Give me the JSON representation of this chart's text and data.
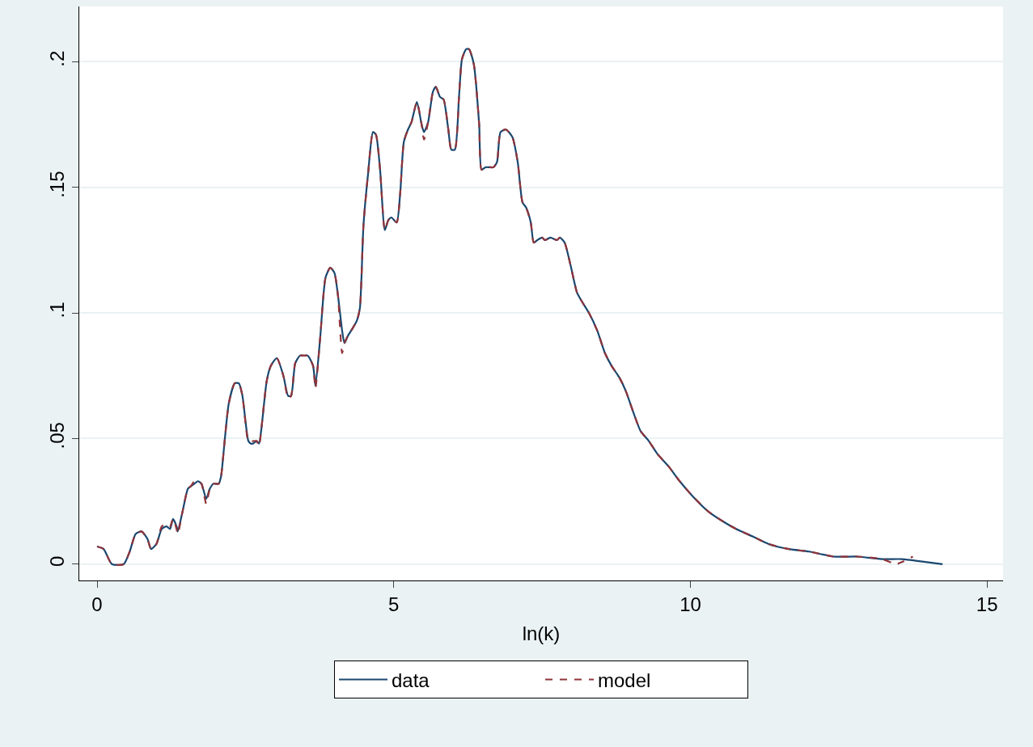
{
  "chart_data": {
    "type": "line",
    "xlabel": "ln(k)",
    "xlim": [
      -0.3,
      15.27
    ],
    "xticks": [
      0,
      5,
      10,
      15
    ],
    "ylim": [
      -0.0065,
      0.222
    ],
    "yticks": [
      {
        "value": 0,
        "label": "0"
      },
      {
        "value": 0.05,
        "label": ".05"
      },
      {
        "value": 0.1,
        "label": ".1"
      },
      {
        "value": 0.15,
        "label": ".15"
      },
      {
        "value": 0.2,
        "label": ".2"
      }
    ],
    "grid": "y",
    "legend": "bottom",
    "marker": "none",
    "series": [
      {
        "name": "data",
        "color": "#1a476f",
        "line_style": "solid",
        "x": [
          0,
          0.11,
          0.25,
          0.45,
          0.55,
          0.65,
          0.75,
          0.85,
          0.91,
          1.0,
          1.09,
          1.17,
          1.23,
          1.28,
          1.34,
          1.36,
          1.45,
          1.53,
          1.58,
          1.64,
          1.7,
          1.76,
          1.84,
          1.9,
          1.96,
          2.05,
          2.09,
          2.15,
          2.22,
          2.32,
          2.39,
          2.45,
          2.55,
          2.59,
          2.63,
          2.69,
          2.73,
          2.77,
          2.86,
          2.93,
          3.03,
          3.14,
          3.22,
          3.27,
          3.34,
          3.42,
          3.49,
          3.55,
          3.64,
          3.68,
          3.76,
          3.85,
          3.93,
          4.0,
          4.06,
          4.13,
          4.17,
          4.23,
          4.31,
          4.38,
          4.43,
          4.49,
          4.57,
          4.65,
          4.7,
          4.77,
          4.85,
          4.91,
          4.96,
          5.05,
          5.11,
          5.17,
          5.24,
          5.3,
          5.39,
          5.47,
          5.51,
          5.58,
          5.66,
          5.71,
          5.78,
          5.84,
          5.92,
          5.97,
          6.03,
          6.1,
          6.15,
          6.22,
          6.27,
          6.35,
          6.44,
          6.48,
          6.55,
          6.61,
          6.68,
          6.74,
          6.8,
          6.89,
          7.0,
          7.09,
          7.17,
          7.23,
          7.31,
          7.36,
          7.42,
          7.5,
          7.55,
          7.64,
          7.75,
          7.8,
          7.88,
          7.98,
          8.09,
          8.16,
          8.29,
          8.43,
          8.56,
          8.67,
          8.81,
          8.91,
          9.03,
          9.16,
          9.3,
          9.44,
          9.63,
          9.82,
          10.04,
          10.3,
          10.55,
          10.77,
          11.05,
          11.32,
          11.66,
          12.0,
          12.41,
          12.82,
          13.23,
          13.57,
          13.91,
          14.25
        ],
        "values": [
          0.007,
          0.006,
          0,
          0,
          0.005,
          0.012,
          0.013,
          0.01,
          0.006,
          0.008,
          0.014,
          0.015,
          0.014,
          0.018,
          0.015,
          0.013,
          0.022,
          0.03,
          0.031,
          0.032,
          0.033,
          0.032,
          0.026,
          0.03,
          0.032,
          0.032,
          0.035,
          0.049,
          0.064,
          0.072,
          0.072,
          0.067,
          0.049,
          0.048,
          0.048,
          0.049,
          0.048,
          0.054,
          0.073,
          0.079,
          0.082,
          0.075,
          0.067,
          0.067,
          0.08,
          0.083,
          0.083,
          0.083,
          0.079,
          0.071,
          0.09,
          0.114,
          0.118,
          0.116,
          0.107,
          0.093,
          0.088,
          0.091,
          0.094,
          0.097,
          0.102,
          0.135,
          0.156,
          0.172,
          0.171,
          0.157,
          0.133,
          0.137,
          0.138,
          0.136,
          0.148,
          0.168,
          0.173,
          0.176,
          0.184,
          0.175,
          0.172,
          0.176,
          0.188,
          0.19,
          0.186,
          0.185,
          0.173,
          0.165,
          0.165,
          0.186,
          0.201,
          0.205,
          0.205,
          0.199,
          0.175,
          0.157,
          0.158,
          0.158,
          0.158,
          0.16,
          0.172,
          0.173,
          0.17,
          0.16,
          0.144,
          0.142,
          0.136,
          0.128,
          0.129,
          0.13,
          0.129,
          0.13,
          0.129,
          0.13,
          0.128,
          0.119,
          0.108,
          0.105,
          0.1,
          0.093,
          0.084,
          0.079,
          0.074,
          0.069,
          0.061,
          0.053,
          0.049,
          0.044,
          0.039,
          0.033,
          0.027,
          0.021,
          0.017,
          0.014,
          0.011,
          0.008,
          0.006,
          0.005,
          0.003,
          0.003,
          0.002,
          0.002,
          0.001,
          0.0
        ]
      },
      {
        "name": "model",
        "color": "#90353b",
        "line_style": "dashed",
        "x": [
          0,
          0.11,
          0.25,
          0.45,
          0.55,
          0.65,
          0.75,
          0.85,
          0.91,
          1.0,
          1.09,
          1.17,
          1.23,
          1.28,
          1.34,
          1.36,
          1.45,
          1.53,
          1.58,
          1.64,
          1.7,
          1.76,
          1.84,
          1.9,
          1.96,
          2.05,
          2.09,
          2.15,
          2.22,
          2.32,
          2.39,
          2.45,
          2.55,
          2.59,
          2.63,
          2.69,
          2.73,
          2.77,
          2.86,
          2.93,
          3.03,
          3.14,
          3.22,
          3.27,
          3.34,
          3.42,
          3.49,
          3.55,
          3.64,
          3.68,
          3.76,
          3.85,
          3.93,
          4.0,
          4.06,
          4.13,
          4.17,
          4.23,
          4.31,
          4.38,
          4.43,
          4.49,
          4.57,
          4.65,
          4.7,
          4.77,
          4.85,
          4.91,
          4.96,
          5.05,
          5.11,
          5.17,
          5.24,
          5.3,
          5.39,
          5.47,
          5.51,
          5.58,
          5.66,
          5.71,
          5.78,
          5.84,
          5.92,
          5.97,
          6.03,
          6.1,
          6.15,
          6.22,
          6.27,
          6.35,
          6.44,
          6.48,
          6.55,
          6.61,
          6.68,
          6.74,
          6.8,
          6.89,
          7.0,
          7.09,
          7.17,
          7.23,
          7.31,
          7.36,
          7.42,
          7.5,
          7.55,
          7.64,
          7.75,
          7.8,
          7.88,
          7.98,
          8.09,
          8.16,
          8.29,
          8.43,
          8.56,
          8.67,
          8.81,
          8.91,
          9.03,
          9.16,
          9.3,
          9.44,
          9.63,
          9.82,
          10.04,
          10.3,
          10.55,
          10.77,
          11.05,
          11.32,
          11.66,
          12.0,
          12.41,
          12.82,
          13.23,
          13.47,
          13.58,
          13.75
        ],
        "values": [
          0.007,
          0.006,
          0,
          0,
          0.005,
          0.012,
          0.013,
          0.01,
          0.006,
          0.008,
          0.015,
          0.016,
          0.015,
          0.018,
          0.014,
          0.012,
          0.022,
          0.03,
          0.031,
          0.033,
          0.033,
          0.032,
          0.024,
          0.03,
          0.032,
          0.032,
          0.035,
          0.049,
          0.064,
          0.072,
          0.072,
          0.067,
          0.049,
          0.049,
          0.049,
          0.049,
          0.047,
          0.054,
          0.073,
          0.079,
          0.082,
          0.075,
          0.066,
          0.067,
          0.08,
          0.083,
          0.083,
          0.083,
          0.079,
          0.07,
          0.09,
          0.114,
          0.118,
          0.116,
          0.107,
          0.084,
          0.088,
          0.091,
          0.094,
          0.097,
          0.102,
          0.135,
          0.156,
          0.172,
          0.171,
          0.157,
          0.133,
          0.137,
          0.138,
          0.136,
          0.148,
          0.168,
          0.173,
          0.176,
          0.184,
          0.175,
          0.169,
          0.176,
          0.188,
          0.19,
          0.186,
          0.185,
          0.173,
          0.165,
          0.165,
          0.186,
          0.201,
          0.205,
          0.205,
          0.199,
          0.175,
          0.157,
          0.158,
          0.158,
          0.158,
          0.16,
          0.172,
          0.173,
          0.17,
          0.16,
          0.144,
          0.142,
          0.136,
          0.128,
          0.129,
          0.13,
          0.129,
          0.13,
          0.129,
          0.13,
          0.128,
          0.119,
          0.108,
          0.105,
          0.1,
          0.093,
          0.084,
          0.079,
          0.074,
          0.069,
          0.061,
          0.053,
          0.049,
          0.044,
          0.039,
          0.033,
          0.027,
          0.021,
          0.017,
          0.014,
          0.011,
          0.008,
          0.006,
          0.005,
          0.003,
          0.003,
          0.002,
          0.0,
          0.001,
          0.003
        ]
      }
    ]
  }
}
